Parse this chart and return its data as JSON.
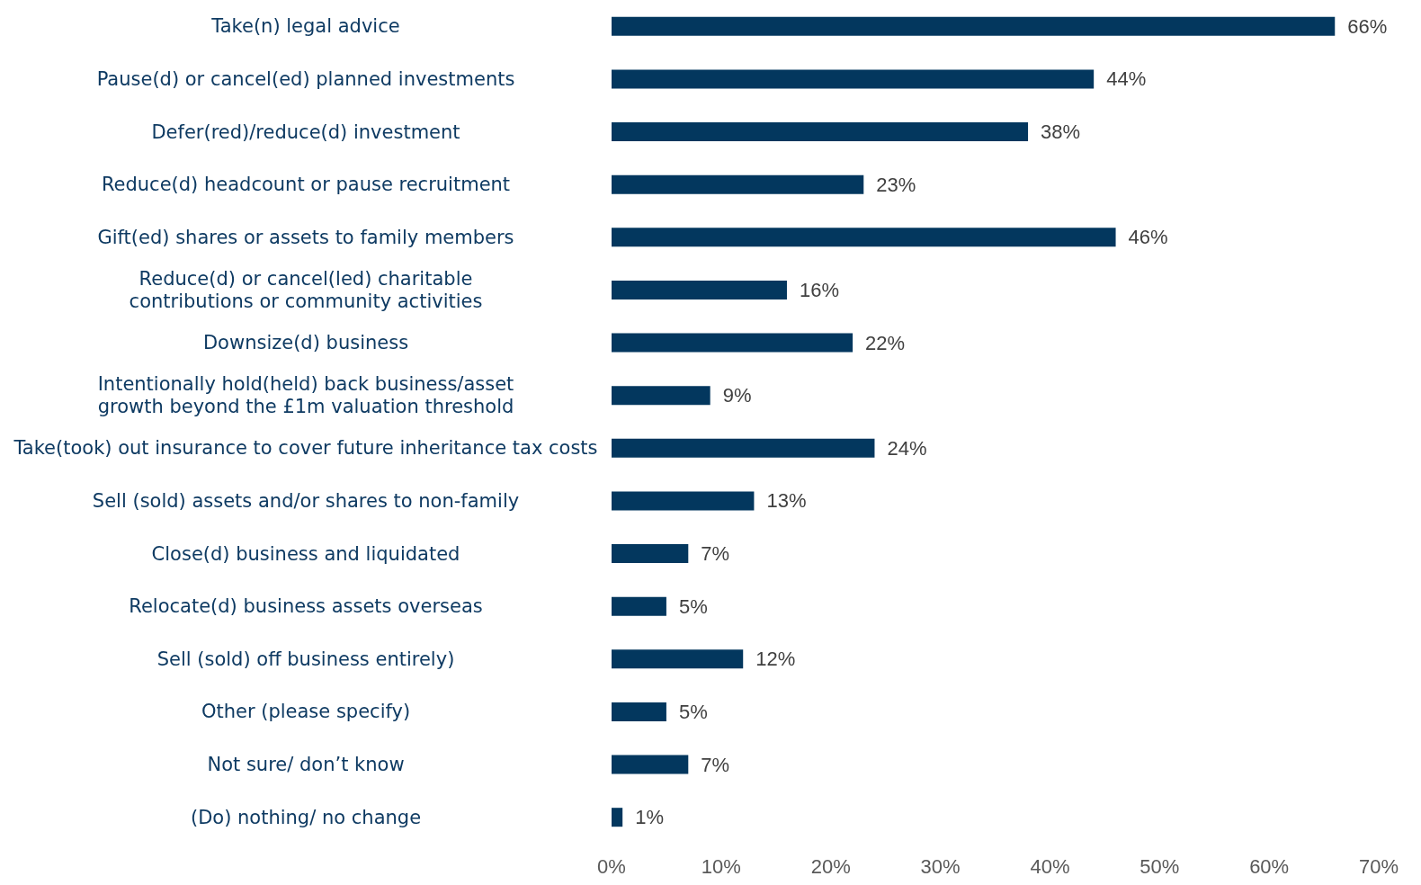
{
  "chart_data": {
    "type": "bar",
    "orientation": "horizontal",
    "categories": [
      "Take(n) legal advice",
      "Pause(d) or cancel(ed) planned investments",
      "Defer(red)/reduce(d) investment",
      "Reduce(d) headcount or pause recruitment",
      "Gift(ed) shares or assets to family members",
      "Reduce(d) or cancel(led) charitable\ncontributions or community activities",
      "Downsize(d) business",
      "Intentionally hold(held) back business/asset\ngrowth beyond the £1m valuation threshold",
      "Take(took) out insurance to cover future inheritance tax costs",
      "Sell (sold) assets and/or shares to non-family",
      "Close(d) business and liquidated",
      "Relocate(d) business assets overseas",
      "Sell (sold) off business entirely)",
      "Other (please specify)",
      "Not sure/ don’t know",
      "(Do) nothing/ no change"
    ],
    "values": [
      66,
      44,
      38,
      23,
      46,
      16,
      22,
      9,
      24,
      13,
      7,
      5,
      12,
      5,
      7,
      1
    ],
    "value_labels": [
      "66%",
      "44%",
      "38%",
      "23%",
      "46%",
      "16%",
      "22%",
      "9%",
      "24%",
      "13%",
      "7%",
      "5%",
      "12%",
      "5%",
      "7%",
      "1%"
    ],
    "color": "#03375e",
    "xlim": [
      0,
      70
    ],
    "xticks": [
      {
        "value": 0,
        "label": "0%"
      },
      {
        "value": 10,
        "label": "10%"
      },
      {
        "value": 20,
        "label": "20%"
      },
      {
        "value": 30,
        "label": "30%"
      },
      {
        "value": 40,
        "label": "40%"
      },
      {
        "value": 50,
        "label": "50%"
      },
      {
        "value": 60,
        "label": "60%"
      },
      {
        "value": 70,
        "label": "70%"
      }
    ],
    "grid": false
  }
}
